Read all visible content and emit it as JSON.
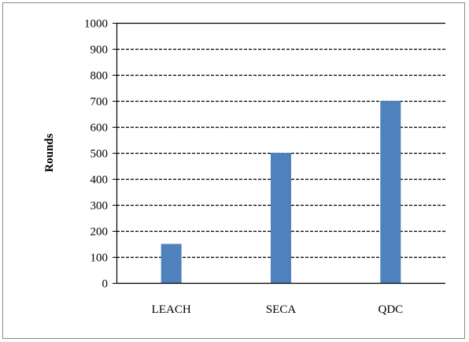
{
  "chart_data": {
    "type": "bar",
    "categories": [
      "LEACH",
      "SECA",
      "QDC"
    ],
    "values": [
      150,
      500,
      700
    ],
    "title": "",
    "xlabel": "",
    "ylabel": "Rounds",
    "ylim": [
      0,
      1000
    ],
    "yticks": [
      0,
      100,
      200,
      300,
      400,
      500,
      600,
      700,
      800,
      900,
      1000
    ],
    "grid": true,
    "grid_style": "dashed",
    "legend": "none",
    "colors": {
      "bar": "#4f81bd",
      "grid": "#000000",
      "frame": "#8c8c8c"
    }
  }
}
